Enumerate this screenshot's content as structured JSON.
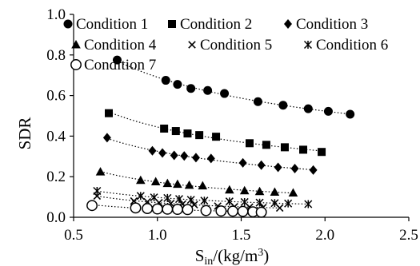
{
  "chart_data": {
    "type": "scatter",
    "title": "",
    "xlabel": "S",
    "xlabel_sub": "in",
    "xlabel_tail": "/(kg/m",
    "xlabel_sup": "3",
    "xlabel_close": ")",
    "ylabel": "SDR",
    "xlim": [
      0.5,
      2.5
    ],
    "ylim": [
      0.0,
      1.0
    ],
    "xticks": [
      0.5,
      1.0,
      1.5,
      2.0,
      2.5
    ],
    "xtick_labels": [
      "0.5",
      "1.0",
      "1.5",
      "2.0",
      "2.5"
    ],
    "yticks": [
      0.0,
      0.2,
      0.4,
      0.6,
      0.8,
      1.0
    ],
    "ytick_labels": [
      "0.0",
      "0.2",
      "0.4",
      "0.6",
      "0.8",
      "1.0"
    ],
    "grid": false,
    "legend_position": "top",
    "trendlines": true,
    "series": [
      {
        "name": "Condition 1",
        "marker": "circle",
        "x": [
          0.76,
          1.05,
          1.12,
          1.2,
          1.3,
          1.4,
          1.6,
          1.75,
          1.9,
          2.02,
          2.15
        ],
        "y": [
          0.775,
          0.675,
          0.655,
          0.635,
          0.625,
          0.61,
          0.57,
          0.552,
          0.535,
          0.522,
          0.508
        ]
      },
      {
        "name": "Condition 2",
        "marker": "square",
        "x": [
          0.71,
          1.04,
          1.11,
          1.18,
          1.25,
          1.35,
          1.55,
          1.65,
          1.76,
          1.87,
          1.98
        ],
        "y": [
          0.513,
          0.437,
          0.425,
          0.413,
          0.405,
          0.397,
          0.365,
          0.357,
          0.345,
          0.333,
          0.322
        ]
      },
      {
        "name": "Condition 3",
        "marker": "diamond",
        "x": [
          0.7,
          0.97,
          1.03,
          1.1,
          1.16,
          1.23,
          1.32,
          1.51,
          1.62,
          1.72,
          1.82,
          1.93
        ],
        "y": [
          0.392,
          0.328,
          0.317,
          0.305,
          0.302,
          0.294,
          0.29,
          0.268,
          0.257,
          0.246,
          0.24,
          0.233
        ]
      },
      {
        "name": "Condition 4",
        "marker": "triangle",
        "x": [
          0.66,
          0.9,
          0.99,
          1.06,
          1.12,
          1.19,
          1.27,
          1.43,
          1.52,
          1.61,
          1.7,
          1.81
        ],
        "y": [
          0.224,
          0.182,
          0.175,
          0.167,
          0.163,
          0.158,
          0.155,
          0.135,
          0.131,
          0.127,
          0.124,
          0.12
        ]
      },
      {
        "name": "Condition 5",
        "marker": "x",
        "x": [
          0.64,
          0.86,
          0.94,
          1.01,
          1.08,
          1.15,
          1.22,
          1.36,
          1.46,
          1.55,
          1.63,
          1.73
        ],
        "y": [
          0.105,
          0.08,
          0.076,
          0.072,
          0.068,
          0.065,
          0.062,
          0.055,
          0.052,
          0.05,
          0.048,
          0.046
        ]
      },
      {
        "name": "Condition 6",
        "marker": "star",
        "x": [
          0.64,
          0.9,
          0.98,
          1.06,
          1.13,
          1.2,
          1.28,
          1.43,
          1.52,
          1.61,
          1.7,
          1.78,
          1.9
        ],
        "y": [
          0.13,
          0.105,
          0.098,
          0.095,
          0.09,
          0.086,
          0.082,
          0.078,
          0.075,
          0.072,
          0.07,
          0.068,
          0.065
        ]
      },
      {
        "name": "Condition 7",
        "marker": "open-circle",
        "x": [
          0.61,
          0.87,
          0.94,
          1.0,
          1.06,
          1.12,
          1.18,
          1.29,
          1.38,
          1.45,
          1.51,
          1.57,
          1.62
        ],
        "y": [
          0.058,
          0.046,
          0.043,
          0.041,
          0.04,
          0.039,
          0.038,
          0.033,
          0.031,
          0.03,
          0.029,
          0.027,
          0.025
        ]
      }
    ]
  }
}
